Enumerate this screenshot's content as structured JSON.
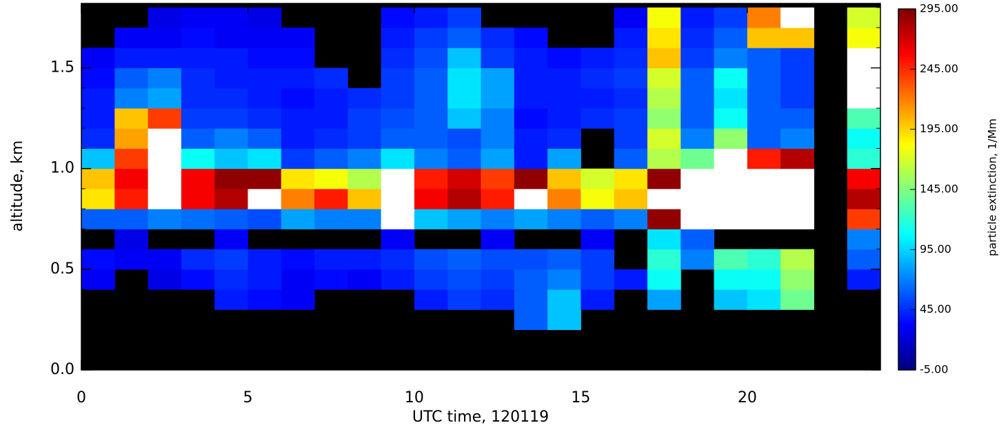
{
  "chart_data": {
    "type": "heatmap",
    "xlabel": "UTC time, 120119",
    "ylabel": "altitude, km",
    "colorbar_label": "particle extinction, 1/Mm",
    "xlim": [
      0,
      24
    ],
    "ylim": [
      0,
      1.82
    ],
    "xticks": [
      0,
      5,
      10,
      15,
      20
    ],
    "yticks": [
      {
        "value": 0,
        "label": "0.0"
      },
      0.5,
      {
        "value": 1,
        "label": "1.0"
      },
      1.5
    ],
    "clim": [
      -5,
      295
    ],
    "cticks": [
      {
        "value": -5,
        "label": "-5.00"
      },
      {
        "value": 45,
        "label": "45.00"
      },
      {
        "value": 95,
        "label": "95.00"
      },
      {
        "value": 145,
        "label": "145.00"
      },
      {
        "value": 195,
        "label": "195.00"
      },
      {
        "value": 245,
        "label": "245.00"
      },
      {
        "value": 295,
        "label": "295.00"
      }
    ],
    "colormap": "jet",
    "x_bins": [
      0,
      1,
      2,
      3,
      4,
      5,
      6,
      7,
      8,
      9,
      10,
      11,
      12,
      13,
      14,
      15,
      16,
      17,
      18,
      19,
      20,
      21,
      22,
      23,
      24
    ],
    "y_bins": [
      0,
      0.1,
      0.2,
      0.3,
      0.4,
      0.5,
      0.6,
      0.7,
      0.8,
      0.9,
      1.0,
      1.1,
      1.2,
      1.3,
      1.4,
      1.5,
      1.6,
      1.7,
      1.8
    ],
    "values": [
      [
        null,
        null,
        null,
        null,
        null,
        null,
        null,
        null,
        null,
        null,
        null,
        null,
        null,
        null,
        null,
        null,
        null,
        null,
        null,
        null,
        null,
        null,
        null,
        null
      ],
      [
        null,
        null,
        null,
        null,
        null,
        null,
        null,
        null,
        null,
        null,
        null,
        null,
        null,
        null,
        null,
        null,
        null,
        null,
        null,
        null,
        null,
        null,
        null,
        null
      ],
      [
        null,
        null,
        null,
        null,
        null,
        null,
        null,
        null,
        null,
        null,
        null,
        null,
        null,
        60,
        90,
        null,
        null,
        null,
        null,
        null,
        null,
        null,
        null,
        null
      ],
      [
        null,
        null,
        null,
        null,
        40,
        35,
        30,
        null,
        null,
        null,
        40,
        50,
        45,
        60,
        90,
        40,
        null,
        80,
        null,
        90,
        100,
        140,
        null,
        null
      ],
      [
        30,
        null,
        25,
        35,
        45,
        40,
        30,
        35,
        30,
        40,
        50,
        55,
        50,
        60,
        70,
        50,
        40,
        110,
        null,
        110,
        110,
        150,
        null,
        40
      ],
      [
        35,
        30,
        30,
        45,
        50,
        40,
        35,
        40,
        40,
        45,
        55,
        60,
        55,
        55,
        60,
        50,
        null,
        120,
        70,
        130,
        120,
        160,
        null,
        60
      ],
      [
        null,
        25,
        null,
        null,
        30,
        null,
        null,
        null,
        null,
        30,
        null,
        null,
        30,
        null,
        null,
        30,
        null,
        100,
        60,
        null,
        null,
        null,
        null,
        70
      ],
      [
        60,
        60,
        70,
        65,
        60,
        55,
        80,
        70,
        70,
        320,
        90,
        80,
        70,
        80,
        70,
        60,
        70,
        290,
        300,
        320,
        320,
        320,
        null,
        240
      ],
      [
        190,
        250,
        310,
        260,
        280,
        300,
        220,
        250,
        200,
        320,
        260,
        280,
        250,
        300,
        220,
        180,
        200,
        300,
        310,
        320,
        320,
        320,
        null,
        280
      ],
      [
        200,
        260,
        320,
        260,
        290,
        290,
        190,
        180,
        160,
        320,
        250,
        270,
        240,
        290,
        200,
        170,
        190,
        290,
        300,
        320,
        320,
        320,
        null,
        260
      ],
      [
        90,
        240,
        320,
        110,
        90,
        100,
        50,
        60,
        70,
        100,
        70,
        60,
        80,
        40,
        80,
        null,
        60,
        160,
        140,
        320,
        250,
        280,
        null,
        120
      ],
      [
        45,
        210,
        320,
        60,
        70,
        60,
        40,
        45,
        50,
        60,
        60,
        55,
        70,
        40,
        45,
        null,
        50,
        170,
        70,
        150,
        60,
        70,
        null,
        110
      ],
      [
        40,
        200,
        240,
        50,
        50,
        45,
        40,
        40,
        50,
        55,
        60,
        90,
        70,
        35,
        40,
        45,
        50,
        150,
        60,
        110,
        60,
        60,
        null,
        130
      ],
      [
        40,
        70,
        80,
        45,
        45,
        40,
        35,
        40,
        45,
        50,
        60,
        100,
        80,
        40,
        40,
        40,
        45,
        160,
        60,
        100,
        60,
        50,
        null,
        320
      ],
      [
        35,
        60,
        70,
        45,
        40,
        40,
        40,
        45,
        null,
        50,
        60,
        100,
        80,
        40,
        40,
        45,
        50,
        170,
        60,
        110,
        60,
        50,
        null,
        320
      ],
      [
        30,
        40,
        40,
        40,
        40,
        35,
        35,
        null,
        null,
        45,
        55,
        90,
        50,
        40,
        35,
        40,
        45,
        200,
        50,
        70,
        60,
        50,
        null,
        310
      ],
      [
        null,
        30,
        30,
        35,
        30,
        30,
        30,
        null,
        null,
        40,
        50,
        60,
        45,
        35,
        null,
        null,
        40,
        190,
        45,
        60,
        200,
        200,
        null,
        180
      ],
      [
        null,
        null,
        25,
        30,
        30,
        25,
        null,
        null,
        null,
        35,
        40,
        50,
        null,
        null,
        null,
        null,
        30,
        180,
        40,
        50,
        220,
        300,
        null,
        170
      ]
    ]
  }
}
